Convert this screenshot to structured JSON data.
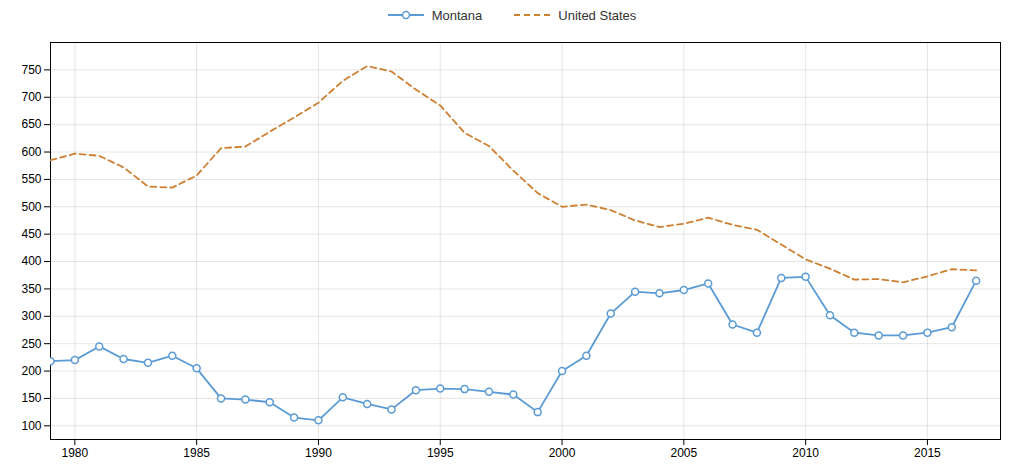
{
  "chart_data": {
    "type": "line",
    "x": [
      1979,
      1980,
      1981,
      1982,
      1983,
      1984,
      1985,
      1986,
      1987,
      1988,
      1989,
      1990,
      1991,
      1992,
      1993,
      1994,
      1995,
      1996,
      1997,
      1998,
      1999,
      2000,
      2001,
      2002,
      2003,
      2004,
      2005,
      2006,
      2007,
      2008,
      2009,
      2010,
      2011,
      2012,
      2013,
      2014,
      2015,
      2016,
      2017
    ],
    "series": [
      {
        "name": "Montana",
        "color": "#5b9bd5",
        "marker": "circle",
        "line_style": "solid",
        "values": [
          218,
          220,
          245,
          222,
          215,
          228,
          205,
          150,
          148,
          143,
          115,
          110,
          152,
          140,
          130,
          165,
          168,
          167,
          162,
          157,
          125,
          200,
          228,
          305,
          345,
          342,
          348,
          360,
          285,
          270,
          370,
          372,
          302,
          270,
          265,
          265,
          270,
          280,
          365
        ]
      },
      {
        "name": "United States",
        "color": "#cd7f32",
        "line_style": "dashed",
        "values": [
          585,
          597,
          593,
          572,
          537,
          535,
          557,
          607,
          610,
          637,
          663,
          690,
          730,
          757,
          747,
          714,
          685,
          635,
          611,
          566,
          525,
          500,
          504,
          494,
          475,
          463,
          469,
          480,
          467,
          458,
          431,
          404,
          387,
          367,
          368,
          362,
          373,
          386,
          384
        ]
      }
    ],
    "xlim": [
      1979,
      2018
    ],
    "xticks": [
      1980,
      1985,
      1990,
      1995,
      2000,
      2005,
      2010,
      2015
    ],
    "ylim": [
      75,
      800
    ],
    "yticks": [
      100,
      150,
      200,
      250,
      300,
      350,
      400,
      450,
      500,
      550,
      600,
      650,
      700,
      750
    ],
    "grid": true,
    "legend": "top"
  }
}
